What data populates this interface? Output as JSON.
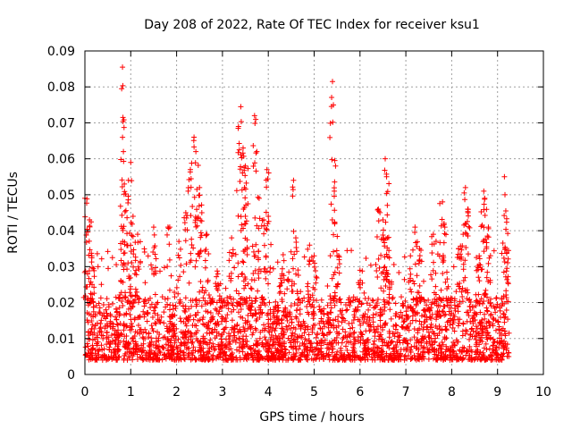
{
  "chart_data": {
    "type": "scatter",
    "title": "Day 208 of 2022, Rate Of TEC Index for receiver ksu1",
    "xlabel": "GPS time / hours",
    "ylabel": "ROTI / TECUs",
    "xlim": [
      0,
      10
    ],
    "ylim": [
      0,
      0.09
    ],
    "xticks": [
      "0",
      "1",
      "2",
      "3",
      "4",
      "5",
      "6",
      "7",
      "8",
      "9",
      "10"
    ],
    "yticks": [
      "0",
      "0.01",
      "0.02",
      "0.03",
      "0.04",
      "0.05",
      "0.06",
      "0.07",
      "0.08",
      "0.09"
    ],
    "grid": true,
    "marker": "+",
    "series_color": "#ff0000",
    "data_x_range": [
      0,
      9.25
    ],
    "baseline_band": [
      0.004,
      0.02
    ],
    "peaks": [
      {
        "x": 0.0,
        "y": 0.049
      },
      {
        "x": 0.1,
        "y": 0.043
      },
      {
        "x": 0.15,
        "y": 0.033
      },
      {
        "x": 0.82,
        "y": 0.0855
      },
      {
        "x": 0.83,
        "y": 0.0715
      },
      {
        "x": 0.84,
        "y": 0.062
      },
      {
        "x": 0.86,
        "y": 0.053
      },
      {
        "x": 1.0,
        "y": 0.059
      },
      {
        "x": 0.95,
        "y": 0.054
      },
      {
        "x": 1.05,
        "y": 0.044
      },
      {
        "x": 1.15,
        "y": 0.039
      },
      {
        "x": 1.5,
        "y": 0.041
      },
      {
        "x": 1.85,
        "y": 0.041
      },
      {
        "x": 2.05,
        "y": 0.037
      },
      {
        "x": 2.2,
        "y": 0.045
      },
      {
        "x": 2.3,
        "y": 0.057
      },
      {
        "x": 2.38,
        "y": 0.066
      },
      {
        "x": 2.42,
        "y": 0.062
      },
      {
        "x": 2.5,
        "y": 0.052
      },
      {
        "x": 2.55,
        "y": 0.045
      },
      {
        "x": 2.65,
        "y": 0.039
      },
      {
        "x": 2.9,
        "y": 0.028
      },
      {
        "x": 3.2,
        "y": 0.038
      },
      {
        "x": 3.35,
        "y": 0.069
      },
      {
        "x": 3.4,
        "y": 0.0745
      },
      {
        "x": 3.45,
        "y": 0.063
      },
      {
        "x": 3.5,
        "y": 0.058
      },
      {
        "x": 3.48,
        "y": 0.052
      },
      {
        "x": 3.5,
        "y": 0.044
      },
      {
        "x": 3.7,
        "y": 0.072
      },
      {
        "x": 3.75,
        "y": 0.062
      },
      {
        "x": 3.8,
        "y": 0.049
      },
      {
        "x": 3.9,
        "y": 0.043
      },
      {
        "x": 3.97,
        "y": 0.057
      },
      {
        "x": 4.0,
        "y": 0.044
      },
      {
        "x": 4.3,
        "y": 0.028
      },
      {
        "x": 4.55,
        "y": 0.054
      },
      {
        "x": 4.6,
        "y": 0.038
      },
      {
        "x": 4.9,
        "y": 0.036
      },
      {
        "x": 5.0,
        "y": 0.033
      },
      {
        "x": 5.4,
        "y": 0.0815
      },
      {
        "x": 5.42,
        "y": 0.075
      },
      {
        "x": 5.45,
        "y": 0.0595
      },
      {
        "x": 5.5,
        "y": 0.033
      },
      {
        "x": 6.0,
        "y": 0.029
      },
      {
        "x": 6.4,
        "y": 0.046
      },
      {
        "x": 6.5,
        "y": 0.043
      },
      {
        "x": 6.55,
        "y": 0.06
      },
      {
        "x": 6.58,
        "y": 0.055
      },
      {
        "x": 6.6,
        "y": 0.038
      },
      {
        "x": 7.1,
        "y": 0.033
      },
      {
        "x": 7.2,
        "y": 0.041
      },
      {
        "x": 7.3,
        "y": 0.035
      },
      {
        "x": 7.6,
        "y": 0.039
      },
      {
        "x": 7.8,
        "y": 0.048
      },
      {
        "x": 7.85,
        "y": 0.041
      },
      {
        "x": 8.15,
        "y": 0.035
      },
      {
        "x": 8.25,
        "y": 0.039
      },
      {
        "x": 8.3,
        "y": 0.052
      },
      {
        "x": 8.35,
        "y": 0.046
      },
      {
        "x": 8.6,
        "y": 0.033
      },
      {
        "x": 8.7,
        "y": 0.051
      },
      {
        "x": 8.72,
        "y": 0.049
      },
      {
        "x": 8.8,
        "y": 0.041
      },
      {
        "x": 9.15,
        "y": 0.055
      },
      {
        "x": 9.18,
        "y": 0.0455
      },
      {
        "x": 9.2,
        "y": 0.034
      }
    ]
  }
}
